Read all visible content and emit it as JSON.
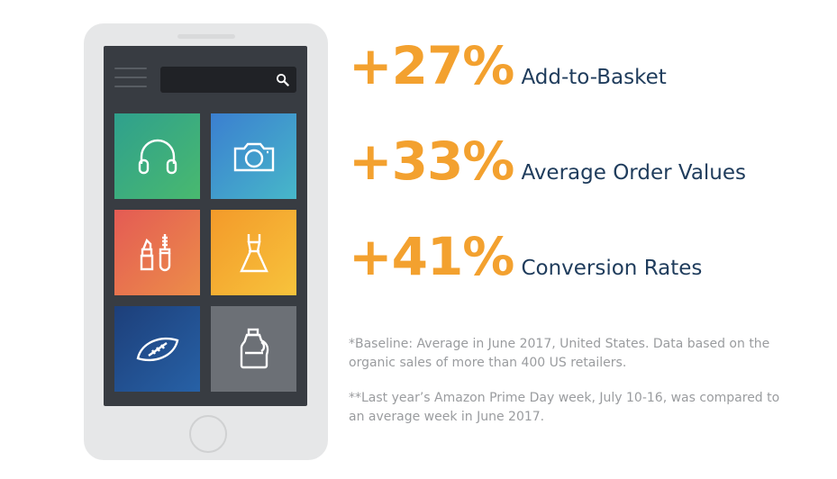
{
  "colors": {
    "accent": "#f3a12f",
    "label": "#1f3c5c",
    "note": "#9a9c9f",
    "phone_body": "#e6e7e8",
    "screen": "#383c42"
  },
  "phone": {
    "search_icon": "search-icon",
    "tiles": [
      {
        "icon": "headphones-icon"
      },
      {
        "icon": "camera-icon"
      },
      {
        "icon": "cosmetics-icon"
      },
      {
        "icon": "dress-icon"
      },
      {
        "icon": "football-icon"
      },
      {
        "icon": "detergent-bottle-icon"
      }
    ]
  },
  "stats": [
    {
      "value": "+27%",
      "label": "Add-to-Basket"
    },
    {
      "value": "+33%",
      "label": "Average Order Values"
    },
    {
      "value": "+41%",
      "label": "Conversion Rates"
    }
  ],
  "notes": {
    "baseline": "*Baseline: Average in June 2017, United States. Data based on the organic sales of more than 400 US retailers.",
    "comparison": "**Last year’s Amazon Prime Day week, July 10-16, was compared to an average week in June 2017."
  }
}
